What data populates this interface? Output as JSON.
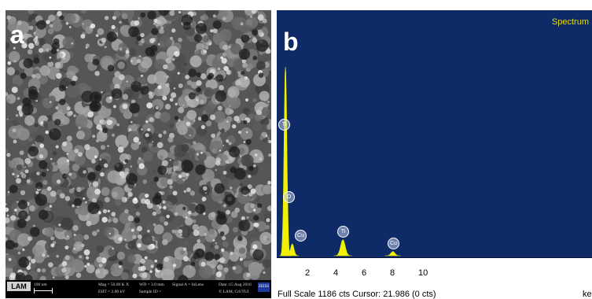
{
  "panel_a": {
    "letter": "a",
    "footer": {
      "logo": "LAM",
      "scale_text": "100 nm",
      "mag": "Mag = 50.00 K X",
      "wd": "WD = 3.0 mm",
      "signal": "Signal A = InLens",
      "date": "Date :15 Aug 2016",
      "eht": "EHT = 2.00 kV",
      "sample": "Sample ID =",
      "lab": "© LAM, CrI/TUI",
      "brand": "ZEISS"
    }
  },
  "panel_b": {
    "letter": "b",
    "title": "Spectrum",
    "x_ticks": [
      "2",
      "4",
      "6",
      "8",
      "10"
    ],
    "status": "Full Scale 1186 cts Cursor: 21.986  (0 cts)",
    "units": "ke",
    "peak_labels": [
      "Ti",
      "O",
      "Cu",
      "Ti",
      "Cu"
    ]
  },
  "chart_data": {
    "type": "area",
    "title": "Spectrum",
    "xlabel": "ke",
    "xlim": [
      0,
      20.5
    ],
    "full_scale_cts": 1186,
    "peaks": [
      {
        "label": "Ti",
        "energy_kev": 0.45,
        "counts": 1120
      },
      {
        "label": "O",
        "energy_kev": 0.52,
        "counts": 300
      },
      {
        "label": "Cu",
        "energy_kev": 0.93,
        "counts": 70
      },
      {
        "label": "Ti",
        "energy_kev": 4.51,
        "counts": 95
      },
      {
        "label": "Cu",
        "energy_kev": 8.04,
        "counts": 25
      }
    ],
    "colors": {
      "background": "#0e2a67",
      "fill": "#f0f000",
      "title": "#e8dc00"
    }
  }
}
